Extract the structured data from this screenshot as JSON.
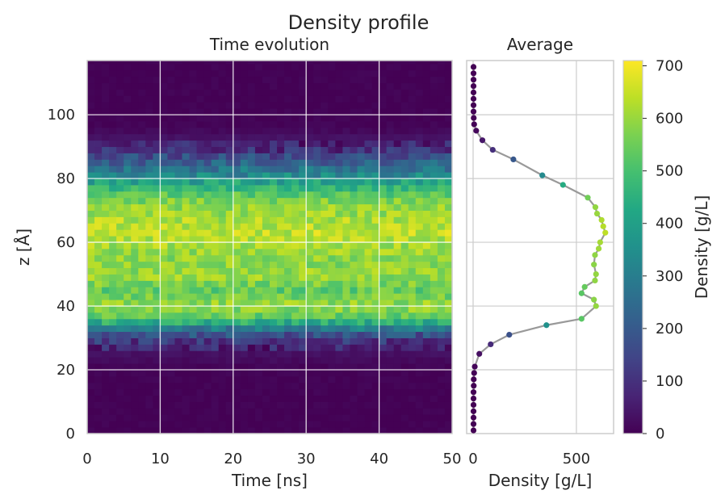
{
  "figure": {
    "title": "Density profile"
  },
  "chart_data": [
    {
      "type": "heatmap",
      "title": "Time evolution",
      "xlabel": "Time [ns]",
      "ylabel": "z [Å]",
      "xlim": [
        0,
        50
      ],
      "ylim": [
        0,
        117
      ],
      "xticks": [
        0,
        10,
        20,
        30,
        40,
        50
      ],
      "yticks": [
        0,
        20,
        40,
        60,
        80,
        100
      ],
      "grid": true,
      "colormap": "viridis",
      "n_time_bins": 50,
      "z_bin_width": 2,
      "note_values": "per-time-bin density shown as color; average profile values below"
    },
    {
      "type": "line",
      "title": "Average",
      "xlabel": "Density [g/L]",
      "xlim": [
        0,
        680
      ],
      "xticks": [
        0,
        500
      ],
      "grid": true,
      "line_color": "#999999",
      "points": [
        {
          "z": 1,
          "density": 2
        },
        {
          "z": 3,
          "density": 2
        },
        {
          "z": 5,
          "density": 2
        },
        {
          "z": 7,
          "density": 2
        },
        {
          "z": 9,
          "density": 2
        },
        {
          "z": 11,
          "density": 2
        },
        {
          "z": 13,
          "density": 2
        },
        {
          "z": 15,
          "density": 3
        },
        {
          "z": 17,
          "density": 3
        },
        {
          "z": 19,
          "density": 5
        },
        {
          "z": 21,
          "density": 8
        },
        {
          "z": 25,
          "density": 30
        },
        {
          "z": 28,
          "density": 85
        },
        {
          "z": 31,
          "density": 175
        },
        {
          "z": 34,
          "density": 355
        },
        {
          "z": 36,
          "density": 525
        },
        {
          "z": 40,
          "density": 595
        },
        {
          "z": 42,
          "density": 585
        },
        {
          "z": 44,
          "density": 525
        },
        {
          "z": 46,
          "density": 540
        },
        {
          "z": 48,
          "density": 590
        },
        {
          "z": 50,
          "density": 595
        },
        {
          "z": 53,
          "density": 585
        },
        {
          "z": 56,
          "density": 590
        },
        {
          "z": 58,
          "density": 608
        },
        {
          "z": 60,
          "density": 615
        },
        {
          "z": 63,
          "density": 640
        },
        {
          "z": 65,
          "density": 630
        },
        {
          "z": 67,
          "density": 622
        },
        {
          "z": 69,
          "density": 600
        },
        {
          "z": 71,
          "density": 592
        },
        {
          "z": 74,
          "density": 555
        },
        {
          "z": 78,
          "density": 435
        },
        {
          "z": 81,
          "density": 335
        },
        {
          "z": 86,
          "density": 195
        },
        {
          "z": 89,
          "density": 95
        },
        {
          "z": 92,
          "density": 45
        },
        {
          "z": 95,
          "density": 15
        },
        {
          "z": 97,
          "density": 5
        },
        {
          "z": 99,
          "density": 3
        },
        {
          "z": 101,
          "density": 2
        },
        {
          "z": 103,
          "density": 2
        },
        {
          "z": 105,
          "density": 2
        },
        {
          "z": 107,
          "density": 2
        },
        {
          "z": 109,
          "density": 2
        },
        {
          "z": 111,
          "density": 2
        },
        {
          "z": 113,
          "density": 2
        },
        {
          "z": 115,
          "density": 2
        }
      ]
    },
    {
      "type": "colorbar",
      "label": "Density [g/L]",
      "colormap": "viridis",
      "range": [
        0,
        710
      ],
      "ticks": [
        0,
        100,
        200,
        300,
        400,
        500,
        600,
        700
      ]
    }
  ]
}
